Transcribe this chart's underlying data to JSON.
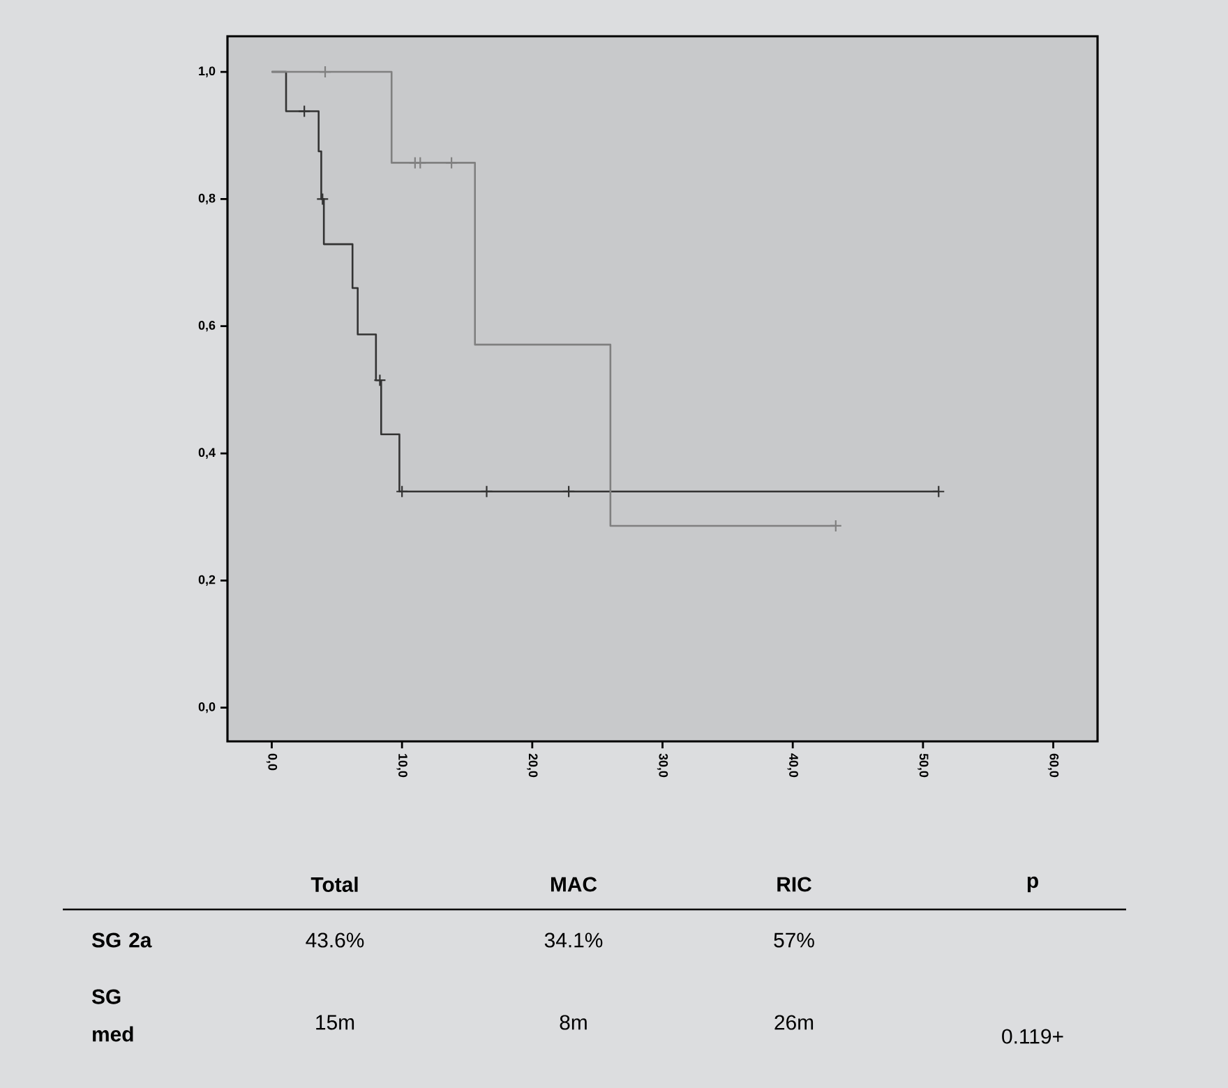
{
  "chart_data": {
    "type": "step",
    "xlim": [
      -3.4,
      63.4
    ],
    "ylim": [
      -0.053,
      1.056
    ],
    "xticks": [
      {
        "value": 0,
        "label": "0,0"
      },
      {
        "value": 10,
        "label": "10,0"
      },
      {
        "value": 20,
        "label": "20,0"
      },
      {
        "value": 30,
        "label": "30,0"
      },
      {
        "value": 40,
        "label": "40,0"
      },
      {
        "value": 50,
        "label": "50,0"
      },
      {
        "value": 60,
        "label": "60,0"
      }
    ],
    "yticks": [
      {
        "value": 0,
        "label": "0,0"
      },
      {
        "value": 0.2,
        "label": "0,2"
      },
      {
        "value": 0.4,
        "label": "0,4"
      },
      {
        "value": 0.6,
        "label": "0,6"
      },
      {
        "value": 0.8,
        "label": "0,8"
      },
      {
        "value": 1,
        "label": "1,0"
      }
    ],
    "series": [
      {
        "color": "#333333",
        "x": [
          0,
          1.1,
          3.6,
          3.8,
          4.0,
          6.2,
          6.6,
          8.0,
          8.4,
          9.8,
          51.2
        ],
        "values": [
          1,
          0.938,
          0.875,
          0.8,
          0.729,
          0.66,
          0.587,
          0.515,
          0.43,
          0.34,
          0.34
        ]
      },
      {
        "color": "#808080",
        "x": [
          0,
          9.2,
          15.6,
          26.0,
          43.3
        ],
        "values": [
          1,
          0.857,
          0.571,
          0.286,
          0.286
        ]
      },
      {
        "type": "scatter",
        "marker": "cross",
        "color": "#333333",
        "x": [
          2.5,
          3.9,
          8.3,
          10.0,
          16.5,
          22.8,
          51.2
        ],
        "values": [
          0.938,
          0.8,
          0.515,
          0.34,
          0.34,
          0.34,
          0.34
        ]
      },
      {
        "type": "scatter",
        "marker": "cross",
        "color": "#808080",
        "x": [
          4.1,
          11.0,
          11.4,
          13.8,
          43.3
        ],
        "values": [
          1,
          0.857,
          0.857,
          0.857,
          0.286
        ]
      }
    ],
    "annotations": [
      "Total",
      "MAC",
      "RIC",
      "p",
      "SG 2a",
      "43.6%",
      "34.1%",
      "57%",
      "SG med",
      "15m",
      "8m",
      "26m",
      "0.119+"
    ]
  }
}
